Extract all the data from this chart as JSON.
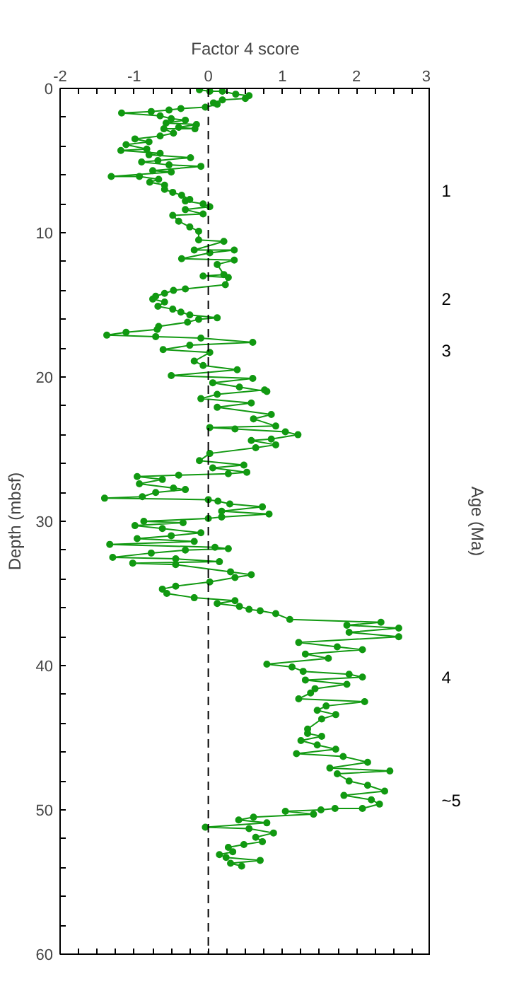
{
  "chart_data": {
    "type": "line",
    "xlabel": "Factor 4 score",
    "ylabel": "Depth (mbsf)",
    "y2label": "Age (Ma)",
    "xlim": [
      -2,
      3
    ],
    "ylim": [
      60,
      0
    ],
    "xticks": [
      -2,
      {
        "value": -1.75,
        "label": null
      },
      {
        "value": -1.5,
        "label": null
      },
      {
        "value": -1.25,
        "label": null
      },
      -1,
      {
        "value": -0.75,
        "label": null
      },
      {
        "value": -0.5,
        "label": null
      },
      {
        "value": -0.25,
        "label": null
      },
      0,
      {
        "value": 0.25,
        "label": null
      },
      {
        "value": 0.5,
        "label": null
      },
      {
        "value": 0.75,
        "label": null
      },
      1,
      {
        "value": 1.25,
        "label": null
      },
      {
        "value": 1.5,
        "label": null
      },
      {
        "value": 1.75,
        "label": null
      },
      2,
      {
        "value": 2.25,
        "label": null
      },
      {
        "value": 2.5,
        "label": null
      },
      {
        "value": 2.75,
        "label": null
      },
      3
    ],
    "yticks": [
      0,
      {
        "value": 2,
        "label": null
      },
      {
        "value": 4,
        "label": null
      },
      {
        "value": 6,
        "label": null
      },
      {
        "value": 8,
        "label": null
      },
      10,
      {
        "value": 12,
        "label": null
      },
      {
        "value": 14,
        "label": null
      },
      {
        "value": 16,
        "label": null
      },
      {
        "value": 18,
        "label": null
      },
      20,
      {
        "value": 22,
        "label": null
      },
      {
        "value": 24,
        "label": null
      },
      {
        "value": 26,
        "label": null
      },
      {
        "value": 28,
        "label": null
      },
      30,
      {
        "value": 32,
        "label": null
      },
      {
        "value": 34,
        "label": null
      },
      {
        "value": 36,
        "label": null
      },
      {
        "value": 38,
        "label": null
      },
      40,
      {
        "value": 42,
        "label": null
      },
      {
        "value": 44,
        "label": null
      },
      {
        "value": 46,
        "label": null
      },
      {
        "value": 48,
        "label": null
      },
      50,
      {
        "value": 52,
        "label": null
      },
      {
        "value": 54,
        "label": null
      },
      {
        "value": 56,
        "label": null
      },
      {
        "value": 58,
        "label": null
      },
      60
    ],
    "annotations": [
      "1",
      "2",
      "3",
      "4",
      "~5"
    ],
    "grid": false,
    "marker": "circle",
    "line_style": "solid",
    "ref_lines": [
      {
        "axis": "x",
        "value": 0,
        "color": "#000000",
        "line_style": "dashed"
      }
    ],
    "series": [
      {
        "color": "#119911",
        "x": [
          -0.12,
          0.02,
          0.19,
          0.37,
          0.55,
          0.5,
          0.19,
          0.07,
          0.12,
          -0.04,
          -0.37,
          -0.53,
          -0.77,
          -1.17,
          -0.65,
          -0.5,
          -0.31,
          -0.57,
          -0.16,
          -0.4,
          -0.18,
          -0.6,
          -0.47,
          -0.65,
          -0.99,
          -0.8,
          -1.11,
          -0.83,
          -1.18,
          -0.65,
          -0.8,
          -0.24,
          -0.68,
          -0.9,
          -0.53,
          -0.1,
          -0.75,
          -0.5,
          -1.31,
          -0.93,
          -0.67,
          -0.79,
          -0.59,
          -0.59,
          -0.48,
          -0.36,
          -0.25,
          -0.31,
          -0.07,
          0.02,
          -0.31,
          -0.07,
          -0.48,
          -0.4,
          -0.25,
          -0.13,
          -0.13,
          0.21,
          -0.19,
          0.35,
          0.02,
          -0.36,
          0.35,
          0.12,
          0.21,
          -0.07,
          0.27,
          0.23,
          -0.31,
          -0.47,
          -0.59,
          -0.71,
          -0.75,
          -0.59,
          -0.68,
          -0.48,
          -0.37,
          -0.25,
          0.12,
          -0.13,
          -0.28,
          -0.67,
          -0.69,
          -1.11,
          -1.37,
          -0.71,
          -0.1,
          0.6,
          -0.25,
          -0.61,
          0.02,
          -0.19,
          -0.07,
          0.39,
          -0.5,
          0.6,
          0.06,
          0.42,
          0.79,
          0.76,
          0.12,
          -0.1,
          0.58,
          0.12,
          0.85,
          0.61,
          0.91,
          0.02,
          0.36,
          1.04,
          1.21,
          0.85,
          0.58,
          0.91,
          0.64,
          0.02,
          -0.12,
          0.48,
          0.06,
          0.52,
          0.27,
          -0.4,
          -0.96,
          -0.62,
          -0.93,
          -0.47,
          -0.31,
          -0.71,
          -0.89,
          -1.4,
          0,
          0.13,
          0.29,
          0.73,
          0.18,
          0.82,
          0.18,
          0,
          -0.87,
          -0.34,
          -0.99,
          -0.62,
          -0.1,
          -0.5,
          -0.96,
          -0.19,
          -1.33,
          0.09,
          0.27,
          -0.31,
          -0.77,
          -1.29,
          -0.44,
          0.15,
          -1.02,
          -0.44,
          0.3,
          0.58,
          0.36,
          0.02,
          -0.44,
          -0.62,
          -0.56,
          -0.19,
          0.36,
          0.12,
          0.42,
          0.55,
          0.7,
          0.91,
          1.1,
          2.33,
          1.87,
          2.57,
          1.9,
          2.57,
          1.22,
          1.74,
          2.08,
          1.31,
          1.62,
          0.79,
          1.13,
          1.28,
          1.9,
          2.08,
          1.31,
          1.87,
          1.44,
          1.38,
          1.22,
          2.11,
          1.59,
          1.47,
          1.72,
          1.53,
          1.34,
          1.34,
          1.53,
          1.25,
          1.47,
          1.72,
          1.19,
          1.82,
          2.15,
          1.64,
          2.45,
          1.74,
          1.9,
          2.15,
          2.38,
          1.83,
          2.2,
          2.31,
          2.08,
          1.71,
          1.52,
          1.04,
          1.42,
          0.61,
          0.41,
          0.79,
          -0.04,
          0.55,
          0.88,
          0.64,
          0.73,
          0.48,
          0.27,
          0.33,
          0.15,
          0.24,
          0.7,
          0.3,
          0.45
        ],
        "values": [
          0.1,
          0.2,
          0.2,
          0.4,
          0.5,
          0.7,
          0.8,
          1.0,
          1.1,
          1.3,
          1.4,
          1.5,
          1.6,
          1.7,
          1.9,
          2.1,
          2.2,
          2.4,
          2.5,
          2.7,
          2.8,
          2.8,
          3.1,
          3.3,
          3.5,
          3.7,
          3.9,
          4.2,
          4.3,
          4.5,
          4.6,
          4.8,
          5.0,
          5.1,
          5.3,
          5.4,
          5.7,
          5.8,
          6.1,
          6.1,
          6.3,
          6.5,
          6.7,
          7.0,
          7.2,
          7.4,
          7.7,
          7.8,
          8.0,
          8.2,
          8.4,
          8.7,
          8.8,
          9.2,
          9.6,
          9.9,
          10.5,
          10.6,
          11.2,
          11.2,
          11.4,
          11.8,
          11.9,
          12.2,
          12.9,
          13.0,
          13.1,
          13.6,
          13.9,
          14.0,
          14.2,
          14.4,
          14.6,
          14.8,
          15.1,
          15.3,
          15.5,
          15.7,
          15.9,
          16.0,
          16.2,
          16.5,
          16.7,
          16.9,
          17.1,
          17.2,
          17.3,
          17.6,
          17.8,
          18.1,
          18.3,
          18.9,
          19.2,
          19.5,
          19.9,
          20.1,
          20.4,
          20.7,
          21.0,
          20.9,
          21.2,
          21.5,
          21.8,
          22.1,
          22.6,
          22.9,
          23.4,
          23.5,
          23.6,
          23.8,
          24.0,
          24.3,
          24.4,
          24.7,
          24.9,
          25.3,
          25.8,
          26.1,
          26.3,
          26.6,
          26.7,
          26.8,
          26.9,
          27.1,
          27.4,
          27.7,
          27.8,
          28.0,
          28.3,
          28.4,
          28.5,
          28.6,
          28.8,
          29.0,
          29.3,
          29.5,
          29.7,
          29.8,
          30.0,
          30.1,
          30.3,
          30.5,
          30.8,
          31.0,
          31.2,
          31.4,
          31.6,
          31.8,
          31.9,
          32.0,
          32.2,
          32.5,
          32.6,
          32.8,
          32.9,
          33.0,
          33.5,
          33.7,
          33.9,
          34.2,
          34.5,
          34.7,
          35.0,
          35.3,
          35.5,
          35.7,
          35.9,
          36.1,
          36.2,
          36.4,
          36.8,
          37.0,
          37.2,
          37.4,
          37.7,
          38.0,
          38.4,
          38.7,
          38.9,
          39.2,
          39.5,
          39.9,
          40.1,
          40.4,
          40.6,
          40.8,
          41.0,
          41.3,
          41.6,
          41.9,
          42.3,
          42.5,
          42.8,
          43.1,
          43.4,
          43.7,
          44.4,
          44.7,
          44.9,
          45.2,
          45.5,
          45.8,
          46.1,
          46.3,
          46.7,
          47.1,
          47.3,
          47.5,
          48.0,
          48.3,
          48.7,
          49.0,
          49.3,
          49.6,
          49.9,
          49.9,
          50.0,
          50.1,
          50.3,
          50.5,
          50.7,
          50.9,
          51.2,
          51.3,
          51.6,
          51.9,
          52.2,
          52.4,
          52.6,
          52.9,
          53.1,
          53.3,
          53.5,
          53.7,
          53.9
        ]
      }
    ]
  }
}
